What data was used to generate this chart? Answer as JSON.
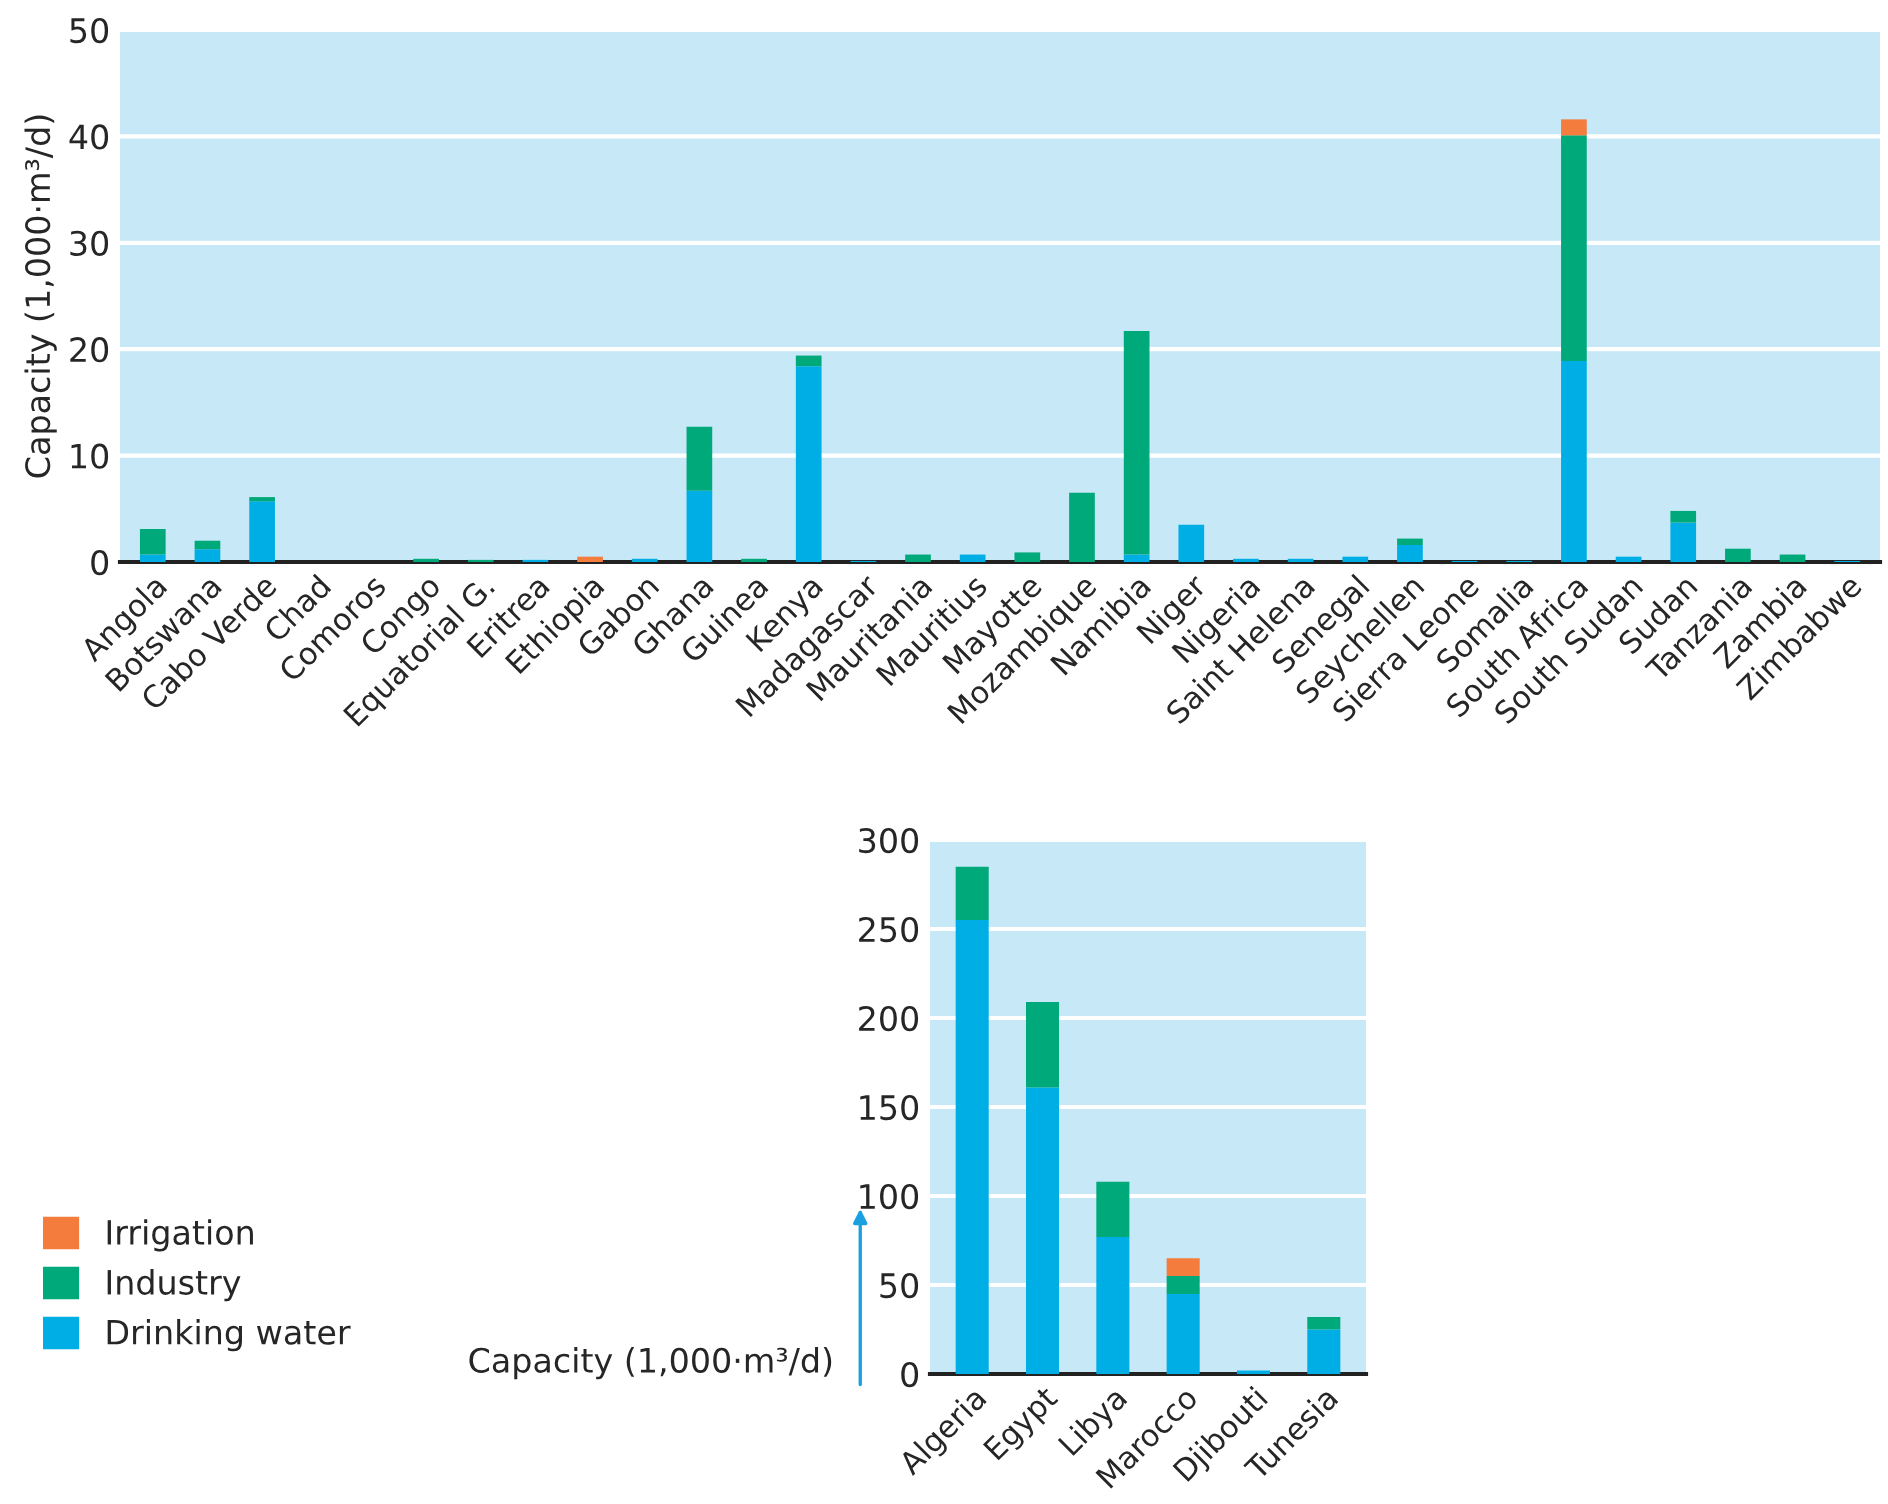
{
  "chart_data": [
    {
      "type": "bar",
      "stacked": true,
      "ylabel": "Capacity (1,000·m³/d)",
      "ylim": [
        0,
        50
      ],
      "yticks": [
        0,
        10,
        20,
        30,
        40,
        50
      ],
      "grid": "y",
      "legend": "bottom left",
      "categories": [
        "Angola",
        "Botswana",
        "Cabo Verde",
        "Chad",
        "Comoros",
        "Congo",
        "Equatorial G.",
        "Eritrea",
        "Ethiopia",
        "Gabon",
        "Ghana",
        "Guinea",
        "Kenya",
        "Madagascar",
        "Mauritania",
        "Mauritius",
        "Mayotte",
        "Mozambique",
        "Namibia",
        "Niger",
        "Nigeria",
        "Saint Helena",
        "Senegal",
        "Seychellen",
        "Sierra Leone",
        "Somalia",
        "South Africa",
        "South Sudan",
        "Sudan",
        "Tanzania",
        "Zambia",
        "Zimbabwe"
      ],
      "series": [
        {
          "name": "Drinking water",
          "color": "#00aee6",
          "values": [
            0.7,
            1.2,
            5.7,
            0,
            0,
            0,
            0,
            0.2,
            0,
            0.3,
            6.7,
            0,
            18.4,
            0.1,
            0,
            0.7,
            0,
            0,
            0.7,
            3.5,
            0.3,
            0.3,
            0.5,
            1.6,
            0.1,
            0.1,
            18.9,
            0.5,
            3.7,
            0,
            0,
            0.1
          ]
        },
        {
          "name": "Industry",
          "color": "#00a97a",
          "values": [
            2.4,
            0.8,
            0.4,
            0,
            0,
            0.3,
            0.2,
            0,
            0,
            0,
            6.0,
            0.3,
            1.0,
            0,
            0.7,
            0,
            0.9,
            6.5,
            21.0,
            0,
            0,
            0,
            0,
            0.6,
            0,
            0,
            21.2,
            0,
            1.1,
            1.25,
            0.7,
            0
          ]
        },
        {
          "name": "Irrigation",
          "color": "#f47c3c",
          "values": [
            0,
            0,
            0,
            0,
            0,
            0,
            0,
            0,
            0.5,
            0,
            0,
            0,
            0,
            0,
            0,
            0,
            0,
            0,
            0,
            0,
            0,
            0,
            0,
            0,
            0,
            0,
            1.5,
            0,
            0,
            0,
            0,
            0
          ]
        }
      ]
    },
    {
      "type": "bar",
      "stacked": true,
      "ylabel": "Capacity (1,000·m³/d)",
      "ylim": [
        0,
        300
      ],
      "yticks": [
        0,
        50,
        100,
        150,
        200,
        250,
        300
      ],
      "grid": "y",
      "categories": [
        "Algeria",
        "Egypt",
        "Libya",
        "Marocco",
        "Djibouti",
        "Tunesia"
      ],
      "series": [
        {
          "color": "#00aee6",
          "values": [
            255,
            161,
            77,
            45,
            2,
            25
          ]
        },
        {
          "color": "#00a97a",
          "values": [
            30,
            48,
            31,
            10,
            0,
            7
          ]
        },
        {
          "color": "#f47c3c",
          "values": [
            0,
            0,
            0,
            10,
            0,
            0
          ]
        }
      ]
    }
  ]
}
